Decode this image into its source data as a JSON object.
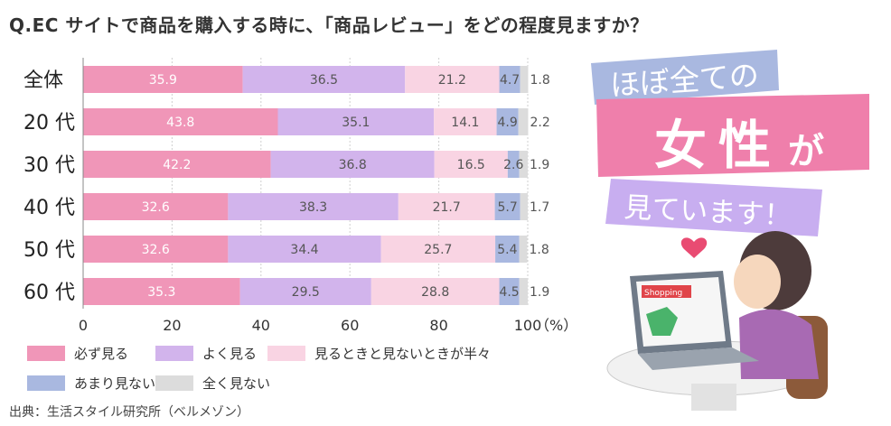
{
  "title": "Q.EC サイトで商品を購入する時に、「商品レビュー」をどの程度見ますか？",
  "source": "出典：生活スタイル研究所（ベルメゾン）",
  "callout": {
    "line1": "ほぼ全ての",
    "line2_a": "女",
    "line2_b": "性",
    "line2_c": "が",
    "line3": "見ています！"
  },
  "illustration": {
    "screen_label": "Shopping"
  },
  "chart_data": {
    "type": "bar",
    "orientation": "horizontal",
    "stacked": true,
    "categories": [
      "全体",
      "20 代",
      "30 代",
      "40 代",
      "50 代",
      "60 代"
    ],
    "series": [
      {
        "name": "必ず見る",
        "color": "#f096b8",
        "values": [
          35.9,
          43.8,
          42.2,
          32.6,
          32.6,
          35.3
        ]
      },
      {
        "name": "よく見る",
        "color": "#d2b4ec",
        "values": [
          36.5,
          35.1,
          36.8,
          38.3,
          34.4,
          29.5
        ]
      },
      {
        "name": "見るときと見ないときが半々",
        "color": "#f9d4e3",
        "values": [
          21.2,
          14.1,
          16.5,
          21.7,
          25.7,
          28.8
        ]
      },
      {
        "name": "あまり見ない",
        "color": "#a9b8e0",
        "values": [
          4.7,
          4.9,
          2.6,
          5.7,
          5.4,
          4.5
        ]
      },
      {
        "name": "全く見ない",
        "color": "#dcdcdc",
        "values": [
          1.8,
          2.2,
          1.9,
          1.7,
          1.8,
          1.9
        ]
      }
    ],
    "xlim": [
      0,
      100
    ],
    "xticks": [
      "0",
      "20",
      "40",
      "60",
      "80",
      "100"
    ],
    "unit_label": "（%）",
    "grid": true
  }
}
